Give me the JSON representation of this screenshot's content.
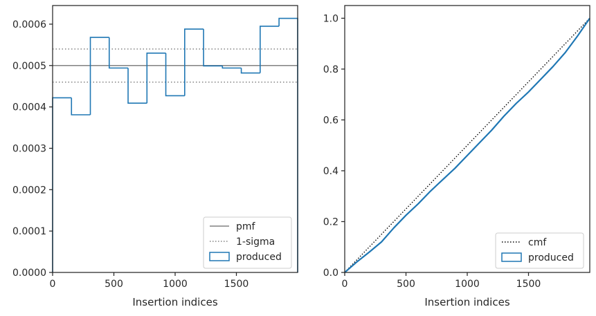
{
  "chart_data": [
    {
      "type": "step",
      "xlabel": "Insertion indices",
      "ylabel": "",
      "xlim": [
        0,
        2000
      ],
      "ylim": [
        0,
        0.000645
      ],
      "x_ticks": [
        0,
        500,
        1000,
        1500
      ],
      "x_tick_labels": [
        "0",
        "500",
        "1000",
        "1500"
      ],
      "y_ticks": [
        0,
        0.0001,
        0.0002,
        0.0003,
        0.0004,
        0.0005,
        0.0006
      ],
      "y_tick_labels": [
        "0.0000",
        "0.0001",
        "0.0002",
        "0.0003",
        "0.0004",
        "0.0005",
        "0.0006"
      ],
      "grid": false,
      "legend_position": "bottom-right",
      "legend": [
        {
          "label": "pmf",
          "style": "solid",
          "color": "#808080"
        },
        {
          "label": "1-sigma",
          "style": "dotted",
          "color": "#808080"
        },
        {
          "label": "produced",
          "style": "box",
          "color": "#1f77b4"
        }
      ],
      "pmf": 0.0005,
      "sigma_band": [
        0.00046,
        0.00054
      ],
      "bin_edges": [
        0,
        154,
        308,
        462,
        616,
        770,
        924,
        1078,
        1232,
        1386,
        1540,
        1694,
        1848,
        2000
      ],
      "bin_values": [
        0.000422,
        0.000381,
        0.000568,
        0.000494,
        0.000409,
        0.00053,
        0.000427,
        0.000588,
        0.000499,
        0.000494,
        0.000482,
        0.000595,
        0.000614
      ]
    },
    {
      "type": "line",
      "xlabel": "Insertion indices",
      "ylabel": "",
      "xlim": [
        0,
        2000
      ],
      "ylim": [
        0,
        1.05
      ],
      "x_ticks": [
        0,
        500,
        1000,
        1500
      ],
      "x_tick_labels": [
        "0",
        "500",
        "1000",
        "1500"
      ],
      "y_ticks": [
        0,
        0.2,
        0.4,
        0.6,
        0.8,
        1.0
      ],
      "y_tick_labels": [
        "0.0",
        "0.2",
        "0.4",
        "0.6",
        "0.8",
        "1.0"
      ],
      "grid": false,
      "legend_position": "bottom-right",
      "legend": [
        {
          "label": "cmf",
          "style": "dotted",
          "color": "#000000"
        },
        {
          "label": "produced",
          "style": "box",
          "color": "#1f77b4"
        }
      ],
      "cmf": {
        "x": [
          0,
          2000
        ],
        "y": [
          0,
          1.0
        ]
      },
      "produced": {
        "x": [
          0,
          100,
          200,
          300,
          400,
          500,
          600,
          700,
          800,
          900,
          1000,
          1100,
          1200,
          1300,
          1400,
          1500,
          1600,
          1700,
          1800,
          1900,
          2000
        ],
        "y": [
          0,
          0.042,
          0.08,
          0.12,
          0.175,
          0.225,
          0.27,
          0.32,
          0.365,
          0.41,
          0.46,
          0.51,
          0.56,
          0.615,
          0.665,
          0.71,
          0.76,
          0.81,
          0.865,
          0.93,
          1.0
        ]
      }
    }
  ]
}
